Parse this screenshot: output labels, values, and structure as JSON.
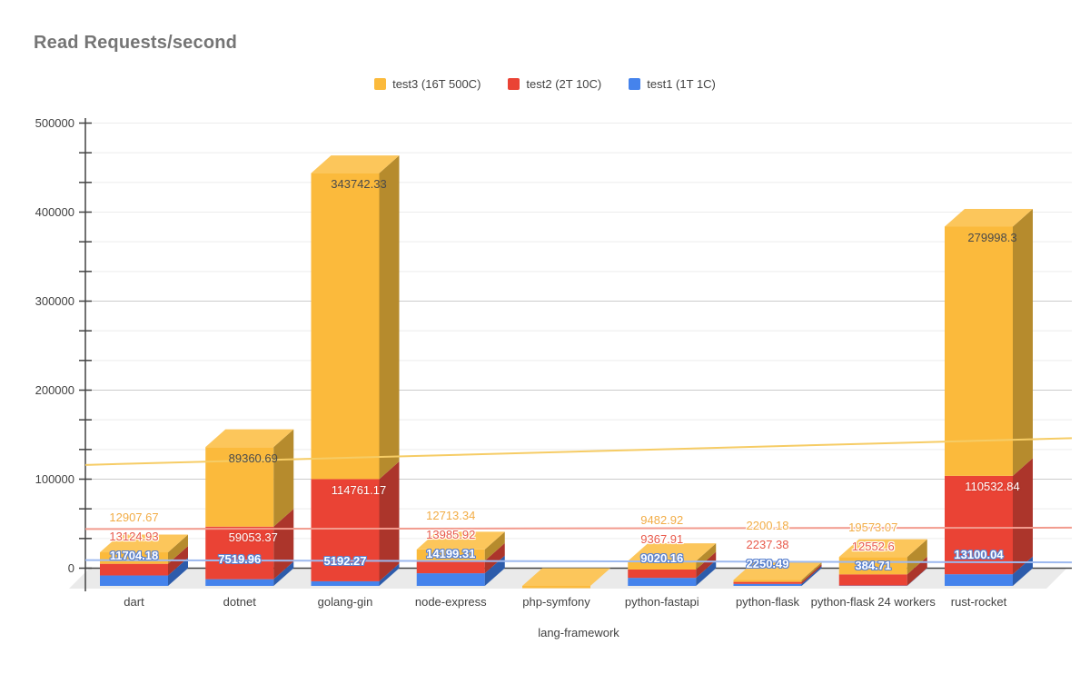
{
  "title": "Read Requests/second",
  "legend": {
    "items": [
      {
        "label": "test3 (16T 500C)",
        "color": "#FBBA3C"
      },
      {
        "label": "test2 (2T 10C)",
        "color": "#EA4335"
      },
      {
        "label": "test1 (1T 1C)",
        "color": "#4583EC"
      }
    ]
  },
  "chart_data": {
    "type": "bar",
    "stacked": true,
    "three_d": true,
    "title": "Read Requests/second",
    "xlabel": "lang-framework",
    "ylabel": "",
    "ylim": [
      0,
      500000
    ],
    "y_major_ticks": [
      0,
      100000,
      200000,
      300000,
      400000,
      500000
    ],
    "y_minor_divisions_per_major": 3,
    "grid": true,
    "legend_position": "top",
    "categories": [
      "dart",
      "dotnet",
      "golang-gin",
      "node-express",
      "php-symfony",
      "python-fastapi",
      "python-flask",
      "python-flask 24 workers",
      "rust-rocket"
    ],
    "series": [
      {
        "name": "test1 (1T 1C)",
        "color": "#4583EC",
        "side_color": "#2D5CAB",
        "top_color": "#6FA0F2",
        "label_color_outside": "#ffffff",
        "values": [
          11704.18,
          7519.96,
          5192.27,
          14199.31,
          null,
          9020.16,
          2250.49,
          384.71,
          13100.04
        ]
      },
      {
        "name": "test2 (2T 10C)",
        "color": "#EA4335",
        "side_color": "#AC352B",
        "top_color": "#E45A4C",
        "label_color_outside": "#E8594A",
        "values": [
          13124.93,
          59053.37,
          114761.17,
          13985.92,
          null,
          9367.91,
          2237.38,
          12552.6,
          110532.84
        ]
      },
      {
        "name": "test3 (16T 500C)",
        "color": "#FBBA3C",
        "side_color": "#B68B2D",
        "top_color": "#FCC65B",
        "label_color_outside": "#F2AC45",
        "values": [
          12907.67,
          89360.69,
          343742.33,
          12713.34,
          null,
          9482.92,
          2200.18,
          19573.07,
          279998.3
        ]
      }
    ],
    "trendlines": [
      {
        "series": "test3 (16T 500C)",
        "color": "#F6CC65",
        "left_value": 116000,
        "right_value": 146000
      },
      {
        "series": "test2 (2T 10C)",
        "color": "#F29B8E",
        "left_value": 44000,
        "right_value": 45500
      },
      {
        "series": "test1 (1T 1C)",
        "color": "#9DB9EF",
        "left_value": 9000,
        "right_value": 6500
      }
    ],
    "colors": {
      "floor": "#EAEAEA",
      "major_grid": "#CCCCCC",
      "minor_grid": "#ECECEC",
      "axis": "#424242",
      "tick_text": "#424242"
    }
  }
}
